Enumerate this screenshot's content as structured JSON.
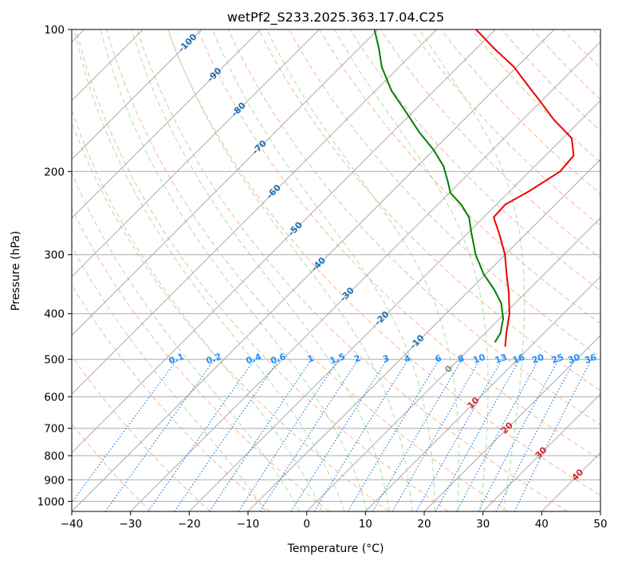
{
  "chart_data": {
    "type": "line",
    "subtype": "skew-t log-p diagram",
    "title": "wetPf2_S233.2025.363.17.04.C25",
    "xlabel": "Temperature (°C)",
    "ylabel": "Pressure (hPa)",
    "xlim": [
      -40,
      50
    ],
    "ylim": [
      1050,
      100
    ],
    "y_scale": "log",
    "x_ticks": [
      -40,
      -30,
      -20,
      -10,
      0,
      10,
      20,
      30,
      40,
      50
    ],
    "y_ticks": [
      100,
      200,
      300,
      400,
      500,
      600,
      700,
      800,
      900,
      1000
    ],
    "grid": true,
    "colors": {
      "temperature": "#ee0000",
      "dewpoint": "#008000",
      "isotherm": "#aaaaaa",
      "dry_adiabat": "#f4a582",
      "moist_adiabat": "#a6dba0",
      "mixing_ratio": "#1f7fe0",
      "isotherm_label": "#1f6fb4",
      "mixing_ratio_label": "#1e90ff",
      "wet_bulb_label": "#d62728",
      "freezing_label": "#888888"
    },
    "isotherm_labels": [
      "-100",
      "-90",
      "-80",
      "-70",
      "-60",
      "-50",
      "-40",
      "-30",
      "-20",
      "-10"
    ],
    "mixing_ratio_labels": [
      "0.1",
      "0.2",
      "0.4",
      "0.6",
      "1",
      "1.5",
      "2",
      "3",
      "4",
      "6",
      "8",
      "10",
      "13",
      "16",
      "20",
      "25",
      "30",
      "36"
    ],
    "freezing_label": "0",
    "wet_bulb_labels": [
      "10",
      "20",
      "30",
      "40"
    ],
    "series": [
      {
        "role": "temperature",
        "points": [
          {
            "p": 470,
            "t": 5.7
          },
          {
            "p": 440,
            "t": 3.6
          },
          {
            "p": 400,
            "t": 0.8
          },
          {
            "p": 360,
            "t": -3.0
          },
          {
            "p": 330,
            "t": -6.4
          },
          {
            "p": 300,
            "t": -10.0
          },
          {
            "p": 270,
            "t": -14.7
          },
          {
            "p": 250,
            "t": -18.3
          },
          {
            "p": 235,
            "t": -18.5
          },
          {
            "p": 220,
            "t": -16.7
          },
          {
            "p": 200,
            "t": -14.8
          },
          {
            "p": 185,
            "t": -15.2
          },
          {
            "p": 170,
            "t": -18.5
          },
          {
            "p": 155,
            "t": -24.8
          },
          {
            "p": 140,
            "t": -31.0
          },
          {
            "p": 130,
            "t": -35.6
          },
          {
            "p": 120,
            "t": -40.5
          },
          {
            "p": 110,
            "t": -46.8
          },
          {
            "p": 100,
            "t": -53.3
          }
        ]
      },
      {
        "role": "dewpoint",
        "points": [
          {
            "p": 460,
            "t": 3.2
          },
          {
            "p": 440,
            "t": 2.6
          },
          {
            "p": 410,
            "t": 0.6
          },
          {
            "p": 380,
            "t": -2.4
          },
          {
            "p": 355,
            "t": -6.0
          },
          {
            "p": 330,
            "t": -10.3
          },
          {
            "p": 300,
            "t": -15.0
          },
          {
            "p": 270,
            "t": -19.4
          },
          {
            "p": 250,
            "t": -22.5
          },
          {
            "p": 235,
            "t": -26.0
          },
          {
            "p": 222,
            "t": -29.8
          },
          {
            "p": 210,
            "t": -32.2
          },
          {
            "p": 195,
            "t": -35.5
          },
          {
            "p": 180,
            "t": -40.0
          },
          {
            "p": 165,
            "t": -45.5
          },
          {
            "p": 150,
            "t": -51.0
          },
          {
            "p": 135,
            "t": -57.2
          },
          {
            "p": 120,
            "t": -63.0
          },
          {
            "p": 110,
            "t": -66.5
          },
          {
            "p": 100,
            "t": -70.6
          }
        ]
      }
    ]
  }
}
